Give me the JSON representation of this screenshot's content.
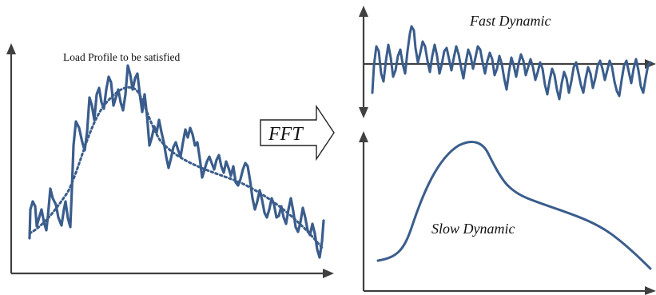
{
  "labels": {
    "load_profile": "Load Profile to be satisfied",
    "fft": "FFT",
    "fast_dynamic": "Fast Dynamic",
    "slow_dynamic": "Slow Dynamic"
  },
  "colors": {
    "curve": "#3A5D8C",
    "axis": "#404040",
    "arrow_outline": "#222222",
    "arrow_fill": "#ffffff"
  },
  "icons": {
    "axis_arrowhead": "arrowhead-icon",
    "fft_block_arrow": "block-arrow-icon"
  }
}
